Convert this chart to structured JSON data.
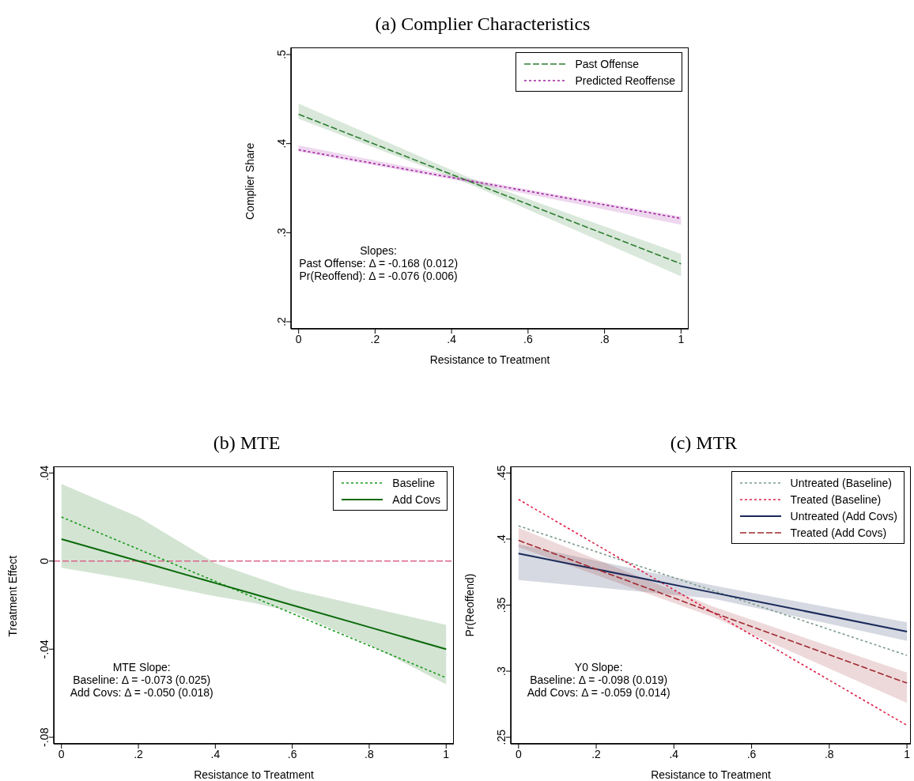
{
  "chart_data": [
    {
      "type": "line",
      "title": "(a) Complier Characteristics",
      "xlabel": "Resistance to Treatment",
      "ylabel": "Complier Share",
      "xlim": [
        -0.02,
        1.02
      ],
      "ylim": [
        0.192,
        0.508
      ],
      "xticks": [
        {
          "value": 0,
          "label": "0"
        },
        {
          "value": 0.2,
          "label": ".2"
        },
        {
          "value": 0.4,
          "label": ".4"
        },
        {
          "value": 0.6,
          "label": ".6"
        },
        {
          "value": 0.8,
          "label": ".8"
        },
        {
          "value": 1,
          "label": "1"
        }
      ],
      "yticks": [
        {
          "value": 0.2,
          "label": ".2"
        },
        {
          "value": 0.3,
          "label": ".3"
        },
        {
          "value": 0.4,
          "label": ".4"
        },
        {
          "value": 0.5,
          "label": ".5"
        }
      ],
      "legend": "top right",
      "series": [
        {
          "name": "Past Offense",
          "color": "#2e7d32",
          "line_style": "dashed",
          "x": [
            0,
            0.45,
            1
          ],
          "values": [
            0.433,
            0.357,
            0.265
          ],
          "lower": [
            0.428,
            0.354,
            0.251
          ],
          "upper": [
            0.445,
            0.361,
            0.276
          ]
        },
        {
          "name": "Predicted Reoffense",
          "color": "#a020a0",
          "line_style": "dotted",
          "x": [
            0,
            0.45,
            1
          ],
          "values": [
            0.393,
            0.358,
            0.316
          ],
          "lower": [
            0.391,
            0.356,
            0.309
          ],
          "upper": [
            0.398,
            0.36,
            0.318
          ]
        }
      ],
      "annotations": [
        "Slopes:",
        "Past Offense: Δ = -0.168 (0.012)",
        "Pr(Reoffend): Δ = -0.076 (0.006)"
      ]
    },
    {
      "type": "line",
      "title": "(b) MTE",
      "xlabel": "Resistance to Treatment",
      "ylabel": "Treatment Effect",
      "xlim": [
        -0.02,
        1.02
      ],
      "ylim": [
        -0.083,
        0.043
      ],
      "xticks": [
        {
          "value": 0,
          "label": "0"
        },
        {
          "value": 0.2,
          "label": ".2"
        },
        {
          "value": 0.4,
          "label": ".4"
        },
        {
          "value": 0.6,
          "label": ".6"
        },
        {
          "value": 0.8,
          "label": ".8"
        },
        {
          "value": 1,
          "label": "1"
        }
      ],
      "yticks": [
        {
          "value": -0.08,
          "label": "-.08"
        },
        {
          "value": -0.04,
          "label": "-.04"
        },
        {
          "value": 0,
          "label": "0"
        },
        {
          "value": 0.04,
          "label": ".04"
        }
      ],
      "legend": "top right",
      "ref_lines": [
        {
          "axis": "y",
          "value": 0,
          "color": "#d9668a",
          "line_style": "dashed"
        }
      ],
      "series": [
        {
          "name": "Baseline",
          "color": "#1a9a1a",
          "line_style": "dotted",
          "x": [
            0,
            1
          ],
          "values": [
            0.02,
            -0.053
          ]
        },
        {
          "name": "Add Covs",
          "color": "#0a6a0a",
          "line_style": "solid",
          "x": [
            0,
            0.2,
            0.4,
            0.5,
            0.6,
            0.8,
            1
          ],
          "values": [
            0.01,
            0.0,
            -0.01,
            -0.015,
            -0.02,
            -0.03,
            -0.04
          ],
          "lower": [
            -0.003,
            -0.009,
            -0.016,
            -0.019,
            -0.023,
            -0.038,
            -0.056
          ],
          "upper": [
            0.035,
            0.02,
            -0.001,
            -0.007,
            -0.013,
            -0.021,
            -0.029
          ]
        }
      ],
      "annotations": [
        "MTE Slope:",
        "Baseline: Δ = -0.073 (0.025)",
        "Add Covs: Δ = -0.050 (0.018)"
      ]
    },
    {
      "type": "line",
      "title": "(c) MTR",
      "xlabel": "Resistance to Treatment",
      "ylabel": "Pr(Reoffend)",
      "xlim": [
        -0.02,
        1.01
      ],
      "ylim": [
        0.245,
        0.455
      ],
      "xticks": [
        {
          "value": 0,
          "label": "0"
        },
        {
          "value": 0.2,
          "label": ".2"
        },
        {
          "value": 0.4,
          "label": ".4"
        },
        {
          "value": 0.6,
          "label": ".6"
        },
        {
          "value": 0.8,
          "label": ".8"
        },
        {
          "value": 1,
          "label": "1"
        }
      ],
      "yticks": [
        {
          "value": 0.25,
          "label": ".25"
        },
        {
          "value": 0.3,
          "label": ".3"
        },
        {
          "value": 0.35,
          "label": ".35"
        },
        {
          "value": 0.4,
          "label": ".4"
        },
        {
          "value": 0.45,
          "label": ".45"
        }
      ],
      "legend": "top right",
      "series": [
        {
          "name": "Untreated (Baseline)",
          "color": "#7a9a8a",
          "line_style": "dotted",
          "x": [
            0,
            1
          ],
          "values": [
            0.41,
            0.312
          ]
        },
        {
          "name": "Treated (Baseline)",
          "color": "#e0204a",
          "line_style": "dotted",
          "x": [
            0,
            1
          ],
          "values": [
            0.43,
            0.259
          ]
        },
        {
          "name": "Untreated (Add Covs)",
          "color": "#1a2a5a",
          "line_style": "solid",
          "x": [
            0,
            0.5,
            1
          ],
          "values": [
            0.389,
            0.3595,
            0.33
          ],
          "lower": [
            0.369,
            0.355,
            0.323
          ],
          "upper": [
            0.396,
            0.365,
            0.337
          ]
        },
        {
          "name": "Treated (Add Covs)",
          "color": "#a02a30",
          "line_style": "dashed",
          "x": [
            0,
            0.5,
            1
          ],
          "values": [
            0.399,
            0.3445,
            0.291
          ],
          "lower": [
            0.394,
            0.341,
            0.276
          ],
          "upper": [
            0.4085,
            0.349,
            0.299
          ]
        }
      ],
      "annotations": [
        "Y0 Slope:",
        "Baseline: Δ = -0.098 (0.019)",
        "Add Covs: Δ = -0.059 (0.014)"
      ]
    }
  ]
}
